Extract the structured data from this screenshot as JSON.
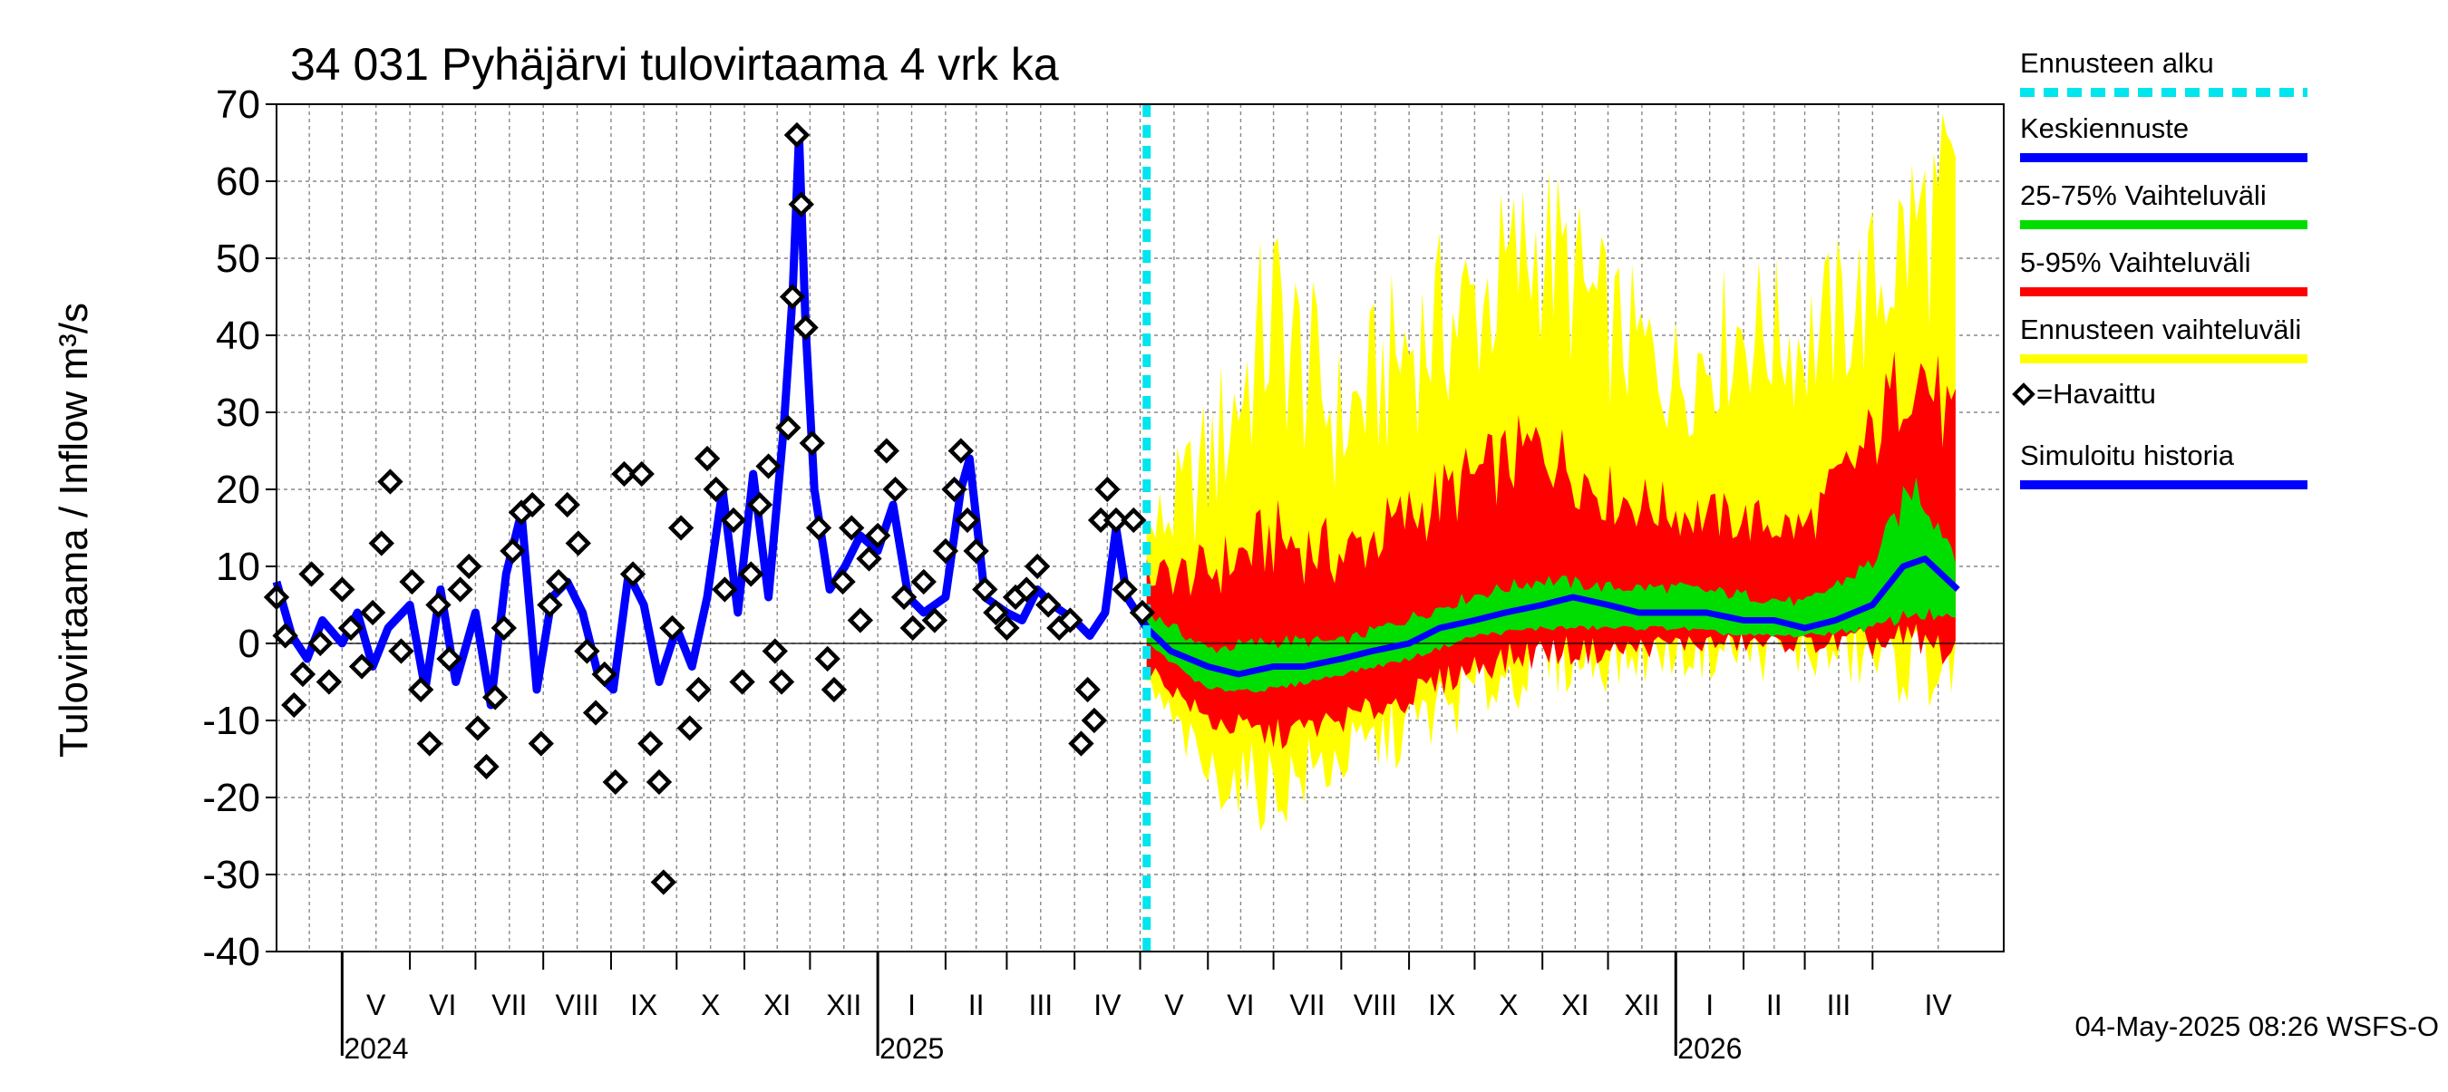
{
  "chart_data": {
    "type": "line",
    "title": "34 031 Pyhäjärvi tulovirtaama 4 vrk ka",
    "ylabel": "Tulovirtaama / Inflow    m³/s",
    "ylim": [
      -40,
      70
    ],
    "yticks": [
      -40,
      -30,
      -20,
      -10,
      0,
      10,
      20,
      30,
      40,
      50,
      60,
      70
    ],
    "ytick_labels": [
      "-40",
      "-30",
      "-20",
      "-10",
      "0",
      "10",
      "20",
      "30",
      "40",
      "50",
      "60",
      "70"
    ],
    "xlim": [
      "2024-04-01",
      "2026-05-31"
    ],
    "forecast_start": "2025-05-04",
    "months": [
      {
        "label": "V",
        "start": "2024-05-01"
      },
      {
        "label": "VI",
        "start": "2024-06-01"
      },
      {
        "label": "VII",
        "start": "2024-07-01"
      },
      {
        "label": "VIII",
        "start": "2024-08-01"
      },
      {
        "label": "IX",
        "start": "2024-09-01"
      },
      {
        "label": "X",
        "start": "2024-10-01"
      },
      {
        "label": "XI",
        "start": "2024-11-01"
      },
      {
        "label": "XII",
        "start": "2024-12-01"
      },
      {
        "label": "I",
        "start": "2025-01-01"
      },
      {
        "label": "II",
        "start": "2025-02-01"
      },
      {
        "label": "III",
        "start": "2025-03-01"
      },
      {
        "label": "IV",
        "start": "2025-04-01"
      },
      {
        "label": "V",
        "start": "2025-05-01"
      },
      {
        "label": "VI",
        "start": "2025-06-01"
      },
      {
        "label": "VII",
        "start": "2025-07-01"
      },
      {
        "label": "VIII",
        "start": "2025-08-01"
      },
      {
        "label": "IX",
        "start": "2025-09-01"
      },
      {
        "label": "X",
        "start": "2025-10-01"
      },
      {
        "label": "XI",
        "start": "2025-11-01"
      },
      {
        "label": "XII",
        "start": "2025-12-01"
      },
      {
        "label": "I",
        "start": "2026-01-01"
      },
      {
        "label": "II",
        "start": "2026-02-01"
      },
      {
        "label": "III",
        "start": "2026-03-01"
      },
      {
        "label": "IV",
        "start": "2026-04-01"
      }
    ],
    "years": [
      {
        "label": "2024",
        "date": "2024-05-01"
      },
      {
        "label": "2025",
        "date": "2025-01-01"
      },
      {
        "label": "2026",
        "date": "2026-01-01"
      }
    ],
    "legend": {
      "placement": "right",
      "items": [
        {
          "label": "Ennusteen alku",
          "color": "#00e5ee",
          "style": "dashed"
        },
        {
          "label": "Keskiennuste",
          "color": "#0000ff",
          "style": "solid"
        },
        {
          "label": "25-75% Vaihteluväli",
          "color": "#00dd00",
          "style": "solid"
        },
        {
          "label": "5-95% Vaihteluväli",
          "color": "#ff0000",
          "style": "solid"
        },
        {
          "label": "Ennusteen vaihteluväli",
          "color": "#ffff00",
          "style": "solid"
        },
        {
          "label": "=Havaittu",
          "color": "#000000",
          "style": "marker"
        },
        {
          "label": "Simuloitu historia",
          "color": "#0000ff",
          "style": "solid"
        }
      ]
    },
    "footer": "04-May-2025 08:26 WSFS-O",
    "simulated_history": [
      [
        "2024-04-01",
        8
      ],
      [
        "2024-04-08",
        1
      ],
      [
        "2024-04-15",
        -2
      ],
      [
        "2024-04-22",
        3
      ],
      [
        "2024-05-01",
        0
      ],
      [
        "2024-05-08",
        4
      ],
      [
        "2024-05-15",
        -3
      ],
      [
        "2024-05-22",
        2
      ],
      [
        "2024-06-01",
        5
      ],
      [
        "2024-06-08",
        -6
      ],
      [
        "2024-06-15",
        7
      ],
      [
        "2024-06-22",
        -5
      ],
      [
        "2024-07-01",
        4
      ],
      [
        "2024-07-08",
        -8
      ],
      [
        "2024-07-15",
        9
      ],
      [
        "2024-07-22",
        17
      ],
      [
        "2024-07-29",
        -6
      ],
      [
        "2024-08-05",
        6
      ],
      [
        "2024-08-12",
        8
      ],
      [
        "2024-08-19",
        4
      ],
      [
        "2024-08-26",
        -4
      ],
      [
        "2024-09-02",
        -6
      ],
      [
        "2024-09-09",
        9
      ],
      [
        "2024-09-16",
        5
      ],
      [
        "2024-09-23",
        -5
      ],
      [
        "2024-10-01",
        2
      ],
      [
        "2024-10-08",
        -3
      ],
      [
        "2024-10-15",
        6
      ],
      [
        "2024-10-22",
        20
      ],
      [
        "2024-10-29",
        4
      ],
      [
        "2024-11-05",
        22
      ],
      [
        "2024-11-12",
        6
      ],
      [
        "2024-11-19",
        28
      ],
      [
        "2024-11-23",
        45
      ],
      [
        "2024-11-26",
        66
      ],
      [
        "2024-11-29",
        41
      ],
      [
        "2024-12-03",
        20
      ],
      [
        "2024-12-10",
        7
      ],
      [
        "2024-12-17",
        10
      ],
      [
        "2024-12-24",
        14
      ],
      [
        "2025-01-01",
        12
      ],
      [
        "2025-01-08",
        18
      ],
      [
        "2025-01-15",
        6
      ],
      [
        "2025-01-22",
        4
      ],
      [
        "2025-02-01",
        6
      ],
      [
        "2025-02-08",
        20
      ],
      [
        "2025-02-12",
        24
      ],
      [
        "2025-02-19",
        6
      ],
      [
        "2025-03-01",
        4
      ],
      [
        "2025-03-08",
        3
      ],
      [
        "2025-03-15",
        7
      ],
      [
        "2025-03-22",
        5
      ],
      [
        "2025-04-01",
        3
      ],
      [
        "2025-04-08",
        1
      ],
      [
        "2025-04-15",
        4
      ],
      [
        "2025-04-20",
        15
      ],
      [
        "2025-04-25",
        6
      ],
      [
        "2025-05-04",
        2
      ]
    ],
    "observed": [
      [
        "2024-04-01",
        6
      ],
      [
        "2024-04-05",
        1
      ],
      [
        "2024-04-09",
        -8
      ],
      [
        "2024-04-13",
        -4
      ],
      [
        "2024-04-17",
        9
      ],
      [
        "2024-04-21",
        0
      ],
      [
        "2024-04-25",
        -5
      ],
      [
        "2024-05-01",
        7
      ],
      [
        "2024-05-05",
        2
      ],
      [
        "2024-05-10",
        -3
      ],
      [
        "2024-05-15",
        4
      ],
      [
        "2024-05-19",
        13
      ],
      [
        "2024-05-23",
        21
      ],
      [
        "2024-05-28",
        -1
      ],
      [
        "2024-06-02",
        8
      ],
      [
        "2024-06-06",
        -6
      ],
      [
        "2024-06-10",
        -13
      ],
      [
        "2024-06-14",
        5
      ],
      [
        "2024-06-19",
        -2
      ],
      [
        "2024-06-24",
        7
      ],
      [
        "2024-06-28",
        10
      ],
      [
        "2024-07-02",
        -11
      ],
      [
        "2024-07-06",
        -16
      ],
      [
        "2024-07-10",
        -7
      ],
      [
        "2024-07-14",
        2
      ],
      [
        "2024-07-18",
        12
      ],
      [
        "2024-07-22",
        17
      ],
      [
        "2024-07-27",
        18
      ],
      [
        "2024-07-31",
        -13
      ],
      [
        "2024-08-04",
        5
      ],
      [
        "2024-08-08",
        8
      ],
      [
        "2024-08-12",
        18
      ],
      [
        "2024-08-17",
        13
      ],
      [
        "2024-08-21",
        -1
      ],
      [
        "2024-08-25",
        -9
      ],
      [
        "2024-08-29",
        -4
      ],
      [
        "2024-09-03",
        -18
      ],
      [
        "2024-09-07",
        22
      ],
      [
        "2024-09-11",
        9
      ],
      [
        "2024-09-15",
        22
      ],
      [
        "2024-09-19",
        -13
      ],
      [
        "2024-09-23",
        -18
      ],
      [
        "2024-09-25",
        -31
      ],
      [
        "2024-09-29",
        2
      ],
      [
        "2024-10-03",
        15
      ],
      [
        "2024-10-07",
        -11
      ],
      [
        "2024-10-11",
        -6
      ],
      [
        "2024-10-15",
        24
      ],
      [
        "2024-10-19",
        20
      ],
      [
        "2024-10-23",
        7
      ],
      [
        "2024-10-27",
        16
      ],
      [
        "2024-10-31",
        -5
      ],
      [
        "2024-11-04",
        9
      ],
      [
        "2024-11-08",
        18
      ],
      [
        "2024-11-12",
        23
      ],
      [
        "2024-11-15",
        -1
      ],
      [
        "2024-11-18",
        -5
      ],
      [
        "2024-11-21",
        28
      ],
      [
        "2024-11-23",
        45
      ],
      [
        "2024-11-25",
        66
      ],
      [
        "2024-11-27",
        57
      ],
      [
        "2024-11-29",
        41
      ],
      [
        "2024-12-02",
        26
      ],
      [
        "2024-12-05",
        15
      ],
      [
        "2024-12-09",
        -2
      ],
      [
        "2024-12-12",
        -6
      ],
      [
        "2024-12-16",
        8
      ],
      [
        "2024-12-20",
        15
      ],
      [
        "2024-12-24",
        3
      ],
      [
        "2024-12-28",
        11
      ],
      [
        "2025-01-01",
        14
      ],
      [
        "2025-01-05",
        25
      ],
      [
        "2025-01-09",
        20
      ],
      [
        "2025-01-13",
        6
      ],
      [
        "2025-01-17",
        2
      ],
      [
        "2025-01-22",
        8
      ],
      [
        "2025-01-27",
        3
      ],
      [
        "2025-02-01",
        12
      ],
      [
        "2025-02-05",
        20
      ],
      [
        "2025-02-08",
        25
      ],
      [
        "2025-02-11",
        16
      ],
      [
        "2025-02-15",
        12
      ],
      [
        "2025-02-19",
        7
      ],
      [
        "2025-02-24",
        4
      ],
      [
        "2025-03-01",
        2
      ],
      [
        "2025-03-05",
        6
      ],
      [
        "2025-03-10",
        7
      ],
      [
        "2025-03-15",
        10
      ],
      [
        "2025-03-20",
        5
      ],
      [
        "2025-03-25",
        2
      ],
      [
        "2025-03-30",
        3
      ],
      [
        "2025-04-04",
        -13
      ],
      [
        "2025-04-07",
        -6
      ],
      [
        "2025-04-10",
        -10
      ],
      [
        "2025-04-13",
        16
      ],
      [
        "2025-04-16",
        20
      ],
      [
        "2025-04-20",
        16
      ],
      [
        "2025-04-24",
        7
      ],
      [
        "2025-04-28",
        16
      ],
      [
        "2025-05-02",
        4
      ]
    ],
    "forecast_mean": [
      [
        "2025-05-04",
        2
      ],
      [
        "2025-05-15",
        -1
      ],
      [
        "2025-06-01",
        -3
      ],
      [
        "2025-06-15",
        -4
      ],
      [
        "2025-07-01",
        -3
      ],
      [
        "2025-07-15",
        -3
      ],
      [
        "2025-08-01",
        -2
      ],
      [
        "2025-08-15",
        -1
      ],
      [
        "2025-09-01",
        0
      ],
      [
        "2025-09-15",
        2
      ],
      [
        "2025-10-01",
        3
      ],
      [
        "2025-10-15",
        4
      ],
      [
        "2025-11-01",
        5
      ],
      [
        "2025-11-15",
        6
      ],
      [
        "2025-12-01",
        5
      ],
      [
        "2025-12-15",
        4
      ],
      [
        "2026-01-01",
        4
      ],
      [
        "2026-01-15",
        4
      ],
      [
        "2026-02-01",
        3
      ],
      [
        "2026-02-15",
        3
      ],
      [
        "2026-03-01",
        2
      ],
      [
        "2026-03-15",
        3
      ],
      [
        "2026-04-01",
        5
      ],
      [
        "2026-04-15",
        10
      ],
      [
        "2026-04-25",
        11
      ],
      [
        "2026-05-10",
        7
      ]
    ],
    "band_25_75": [
      [
        "2025-05-04",
        0,
        4
      ],
      [
        "2025-06-01",
        -6,
        -1
      ],
      [
        "2025-07-01",
        -6,
        0
      ],
      [
        "2025-08-01",
        -4,
        0
      ],
      [
        "2025-09-01",
        -2,
        3
      ],
      [
        "2025-10-01",
        1,
        6
      ],
      [
        "2025-11-01",
        2,
        8
      ],
      [
        "2025-12-01",
        2,
        7
      ],
      [
        "2026-01-01",
        2,
        7
      ],
      [
        "2026-02-01",
        1,
        6
      ],
      [
        "2026-03-01",
        1,
        5
      ],
      [
        "2026-04-01",
        2,
        10
      ],
      [
        "2026-04-20",
        4,
        20
      ],
      [
        "2026-05-10",
        3,
        11
      ]
    ],
    "band_5_95": [
      [
        "2025-05-04",
        -3,
        8
      ],
      [
        "2025-06-01",
        -10,
        8
      ],
      [
        "2025-07-01",
        -12,
        12
      ],
      [
        "2025-08-01",
        -10,
        10
      ],
      [
        "2025-09-01",
        -7,
        15
      ],
      [
        "2025-10-01",
        -3,
        20
      ],
      [
        "2025-11-01",
        -1,
        24
      ],
      [
        "2025-12-01",
        -1,
        18
      ],
      [
        "2026-01-01",
        0,
        16
      ],
      [
        "2026-02-01",
        0,
        15
      ],
      [
        "2026-03-01",
        0,
        14
      ],
      [
        "2026-04-01",
        0,
        25
      ],
      [
        "2026-04-20",
        0,
        35
      ],
      [
        "2026-05-10",
        -1,
        25
      ]
    ],
    "band_full": [
      [
        "2025-05-04",
        -5,
        12
      ],
      [
        "2025-06-01",
        -17,
        20
      ],
      [
        "2025-07-01",
        -19,
        38
      ],
      [
        "2025-08-01",
        -15,
        25
      ],
      [
        "2025-09-01",
        -11,
        35
      ],
      [
        "2025-10-01",
        -6,
        40
      ],
      [
        "2025-11-01",
        -2,
        48
      ],
      [
        "2025-12-01",
        -2,
        38
      ],
      [
        "2026-01-01",
        -1,
        32
      ],
      [
        "2026-02-01",
        -1,
        38
      ],
      [
        "2026-03-01",
        -1,
        36
      ],
      [
        "2026-04-01",
        -2,
        42
      ],
      [
        "2026-04-20",
        -3,
        50
      ],
      [
        "2026-05-10",
        -3,
        52
      ]
    ]
  }
}
